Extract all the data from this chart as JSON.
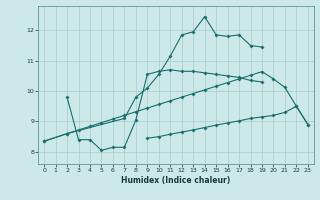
{
  "xlabel": "Humidex (Indice chaleur)",
  "bg_color": "#cce8e8",
  "grid_color": "#aacccc",
  "line_color": "#1a6e6e",
  "xlim": [
    -0.5,
    23.5
  ],
  "ylim": [
    7.6,
    12.8
  ],
  "xticks": [
    0,
    1,
    2,
    3,
    4,
    5,
    6,
    7,
    8,
    9,
    10,
    11,
    12,
    13,
    14,
    15,
    16,
    17,
    18,
    19,
    20,
    21,
    22,
    23
  ],
  "yticks": [
    8,
    9,
    10,
    11,
    12
  ],
  "line1_x": [
    0,
    2,
    7,
    8,
    9,
    10,
    11,
    12,
    13,
    14,
    15,
    16,
    17,
    18,
    19
  ],
  "line1_y": [
    8.35,
    8.6,
    9.1,
    9.8,
    10.1,
    10.55,
    11.15,
    11.85,
    11.95,
    12.45,
    11.85,
    11.8,
    11.85,
    11.5,
    11.45
  ],
  "line2_x": [
    2,
    3,
    4,
    5,
    6,
    7,
    8,
    9,
    10,
    11,
    12,
    13,
    14,
    15,
    16,
    17,
    18,
    19
  ],
  "line2_y": [
    9.8,
    8.4,
    8.4,
    8.05,
    8.15,
    8.15,
    9.05,
    10.55,
    10.65,
    10.7,
    10.65,
    10.65,
    10.6,
    10.55,
    10.5,
    10.45,
    10.35,
    10.3
  ],
  "line3_x": [
    0,
    2,
    3,
    4,
    5,
    6,
    7,
    8,
    9,
    10,
    11,
    12,
    13,
    14,
    15,
    16,
    17,
    18,
    19,
    20,
    21,
    22,
    23
  ],
  "line3_y": [
    8.35,
    8.6,
    8.72,
    8.84,
    8.96,
    9.08,
    9.2,
    9.32,
    9.44,
    9.56,
    9.68,
    9.8,
    9.92,
    10.04,
    10.16,
    10.28,
    10.4,
    10.52,
    10.64,
    10.4,
    10.12,
    9.5,
    8.9
  ],
  "line4_x": [
    9,
    10,
    11,
    12,
    13,
    14,
    15,
    16,
    17,
    18,
    19,
    20,
    21,
    22,
    23
  ],
  "line4_y": [
    8.45,
    8.5,
    8.58,
    8.65,
    8.72,
    8.8,
    8.88,
    8.95,
    9.02,
    9.1,
    9.15,
    9.2,
    9.3,
    9.5,
    8.9
  ]
}
